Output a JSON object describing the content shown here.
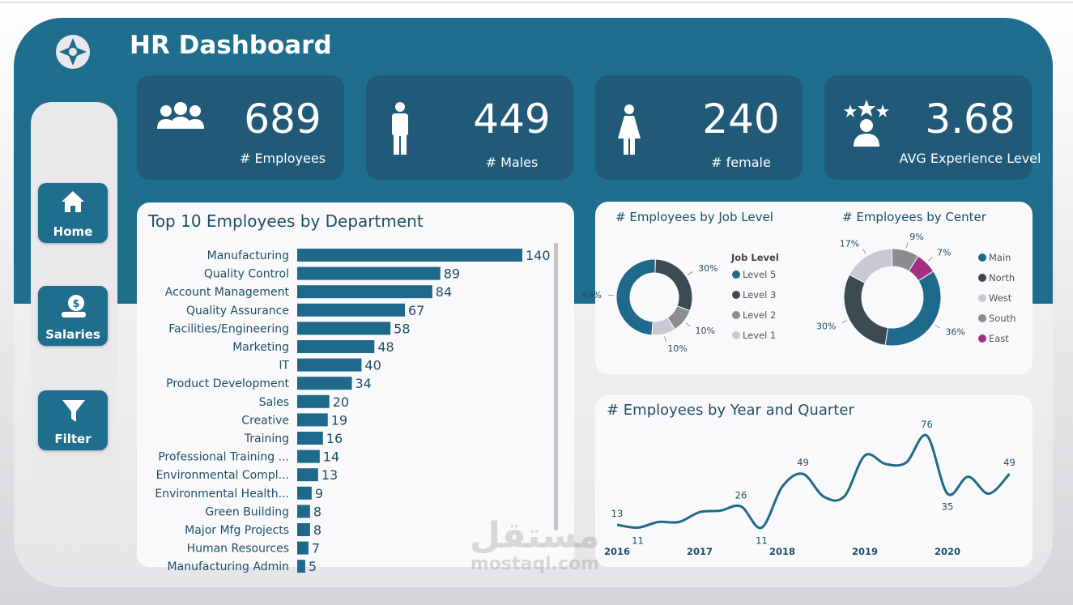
{
  "header": {
    "title": "HR Dashboard"
  },
  "nav": [
    {
      "label": "Home"
    },
    {
      "label": "Salaries"
    },
    {
      "label": "Filter"
    }
  ],
  "kpis": [
    {
      "value": 689,
      "label": "# Employees"
    },
    {
      "value": 449,
      "label": "# Males"
    },
    {
      "value": 240,
      "label": "# female"
    },
    {
      "value": 3.68,
      "label": "AVG Experience Level"
    }
  ],
  "chart_data": [
    {
      "type": "bar",
      "orientation": "horizontal",
      "title": "Top 10 Employees by Department",
      "categories": [
        "Manufacturing",
        "Quality Control",
        "Account Management",
        "Quality Assurance",
        "Facilities/Engineering",
        "Marketing",
        "IT",
        "Product Development",
        "Sales",
        "Creative",
        "Training",
        "Professional Training ...",
        "Environmental Compl...",
        "Environmental Health...",
        "Green Building",
        "Major Mfg Projects",
        "Human Resources",
        "Manufacturing Admin"
      ],
      "values": [
        140,
        89,
        84,
        67,
        58,
        48,
        40,
        34,
        20,
        19,
        16,
        14,
        13,
        9,
        8,
        8,
        7,
        5
      ],
      "color": "#1f6a8a",
      "xlim": [
        0,
        140
      ]
    },
    {
      "type": "pie",
      "donut": true,
      "title": "# Employees by Job Level",
      "legend_title": "Job Level",
      "categories": [
        "Level 5",
        "Level 3",
        "Level 2",
        "Level 1"
      ],
      "values": [
        49,
        30,
        10,
        10
      ],
      "value_labels": [
        "49%",
        "30%",
        "10%",
        "10%"
      ],
      "colors": [
        "#1f6a8a",
        "#3c4a52",
        "#8d8d8f",
        "#c9c9d3"
      ]
    },
    {
      "type": "pie",
      "donut": true,
      "title": "# Employees by Center",
      "categories": [
        "Main",
        "North",
        "West",
        "South",
        "East"
      ],
      "values": [
        36,
        30,
        17,
        9,
        7
      ],
      "value_labels": [
        "36%",
        "30%",
        "17%",
        "9%",
        "7%"
      ],
      "colors": [
        "#1f6a8a",
        "#3c4a52",
        "#c9c9d3",
        "#8d8d8f",
        "#a3307e"
      ]
    },
    {
      "type": "line",
      "title": "# Employees by Year and Quarter",
      "categories": [
        "2016",
        null,
        null,
        null,
        "2017",
        null,
        null,
        null,
        "2018",
        null,
        null,
        null,
        "2019",
        null,
        null,
        null,
        "2020",
        null,
        null,
        null
      ],
      "values": [
        13,
        11,
        15,
        15,
        22,
        23,
        26,
        11,
        40,
        49,
        33,
        33,
        62,
        56,
        57,
        76,
        35,
        47,
        35,
        49
      ],
      "value_labels": [
        "13",
        "11",
        null,
        null,
        null,
        null,
        "26",
        "11",
        null,
        "49",
        null,
        null,
        null,
        null,
        null,
        "76",
        "35",
        null,
        null,
        "49"
      ],
      "color": "#1f6a8a",
      "ylim": [
        0,
        80
      ]
    }
  ],
  "watermark": {
    "arabic": "مستقل",
    "latin": "mostaql.com"
  }
}
